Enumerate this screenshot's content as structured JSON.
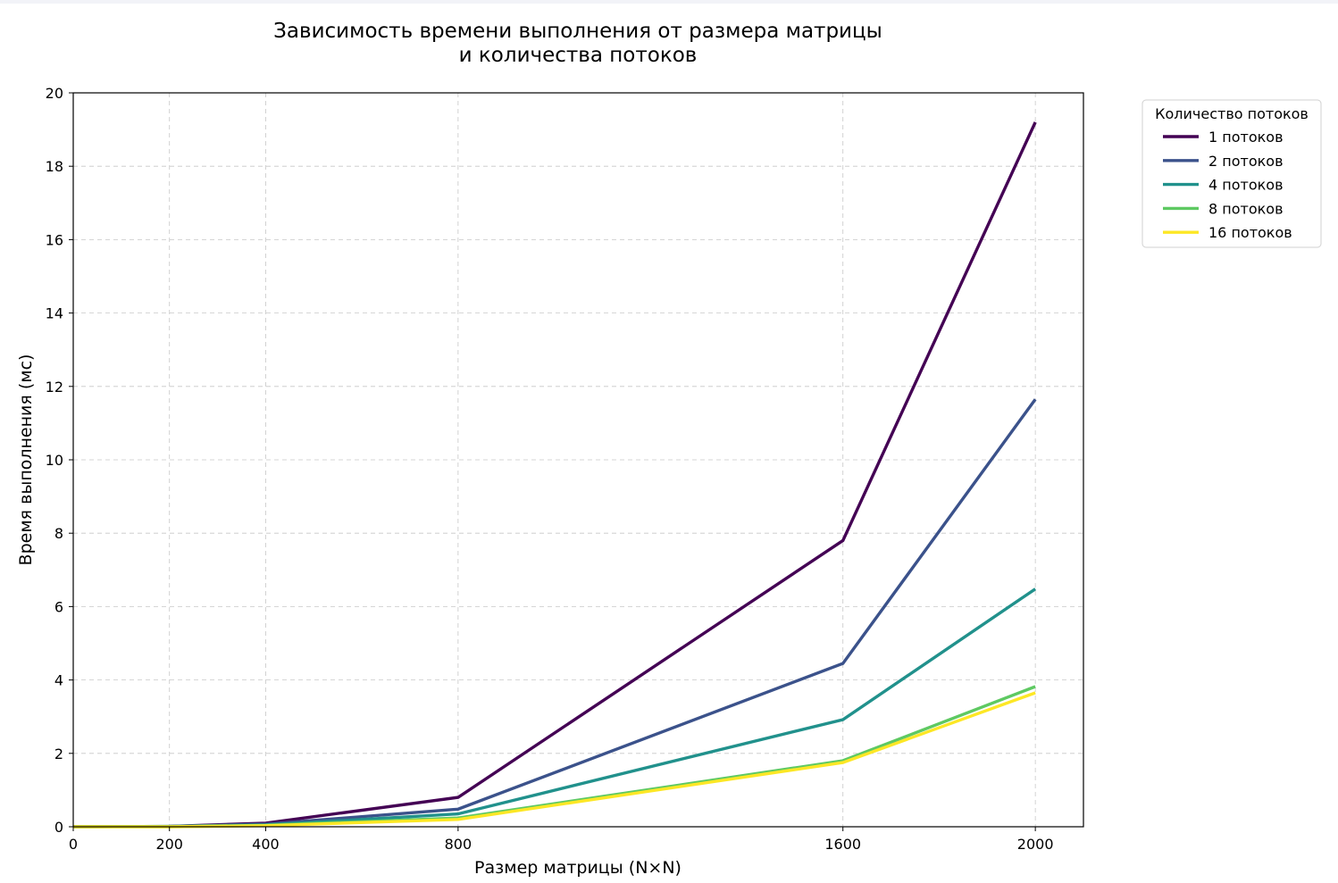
{
  "chart_data": {
    "type": "line",
    "title": [
      "Зависимость времени выполнения от размера матрицы",
      "и количества потоков"
    ],
    "xlabel": "Размер матрицы (N×N)",
    "ylabel": "Время выполнения (мс)",
    "xlim": [
      0,
      2100
    ],
    "ylim": [
      0,
      20
    ],
    "xticks": [
      0,
      200,
      400,
      800,
      1600,
      2000
    ],
    "yticks": [
      0,
      2,
      4,
      6,
      8,
      10,
      12,
      14,
      16,
      18,
      20
    ],
    "grid": true,
    "legend": {
      "title": "Количество потоков",
      "placement": "outside-top-right"
    },
    "x": [
      0,
      200,
      400,
      800,
      1600,
      2000
    ],
    "series": [
      {
        "name": "1 потоков",
        "color": "#440154",
        "values": [
          0.0,
          0.01,
          0.1,
          0.8,
          7.8,
          19.2
        ]
      },
      {
        "name": "2 потоков",
        "color": "#3b528b",
        "values": [
          0.0,
          0.01,
          0.07,
          0.48,
          4.45,
          11.65
        ]
      },
      {
        "name": "4 потоков",
        "color": "#21918c",
        "values": [
          0.0,
          0.01,
          0.05,
          0.35,
          2.92,
          6.48
        ]
      },
      {
        "name": "8 потоков",
        "color": "#5ec962",
        "values": [
          0.0,
          0.0,
          0.04,
          0.24,
          1.8,
          3.82
        ]
      },
      {
        "name": "16 потоков",
        "color": "#fde725",
        "values": [
          0.0,
          0.0,
          0.03,
          0.2,
          1.75,
          3.65
        ]
      }
    ]
  }
}
